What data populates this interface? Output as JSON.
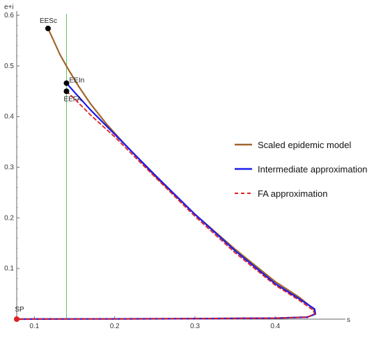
{
  "chart_data": {
    "type": "line",
    "xlabel": "s",
    "ylabel": "e+i",
    "xlim": [
      0.078,
      0.47
    ],
    "ylim": [
      0,
      0.6
    ],
    "x_ticks": [
      "0.1",
      "0.2",
      "0.3",
      "0.4"
    ],
    "y_ticks": [
      "0.1",
      "0.2",
      "0.3",
      "0.4",
      "0.5",
      "0.6"
    ],
    "vertical_line": {
      "x": 0.14,
      "color": "#5cc85c"
    },
    "series": [
      {
        "name": "Scaled epidemic model",
        "color": "#a0652a",
        "style": "solid",
        "points": [
          [
            0.117,
            0.574
          ],
          [
            0.124,
            0.55
          ],
          [
            0.132,
            0.522
          ],
          [
            0.142,
            0.494
          ],
          [
            0.155,
            0.46
          ],
          [
            0.17,
            0.425
          ],
          [
            0.19,
            0.385
          ],
          [
            0.21,
            0.35
          ],
          [
            0.25,
            0.283
          ],
          [
            0.3,
            0.207
          ],
          [
            0.35,
            0.138
          ],
          [
            0.4,
            0.074
          ],
          [
            0.43,
            0.043
          ],
          [
            0.448,
            0.02
          ],
          [
            0.449,
            0.01
          ],
          [
            0.44,
            0.004
          ],
          [
            0.4,
            0.002
          ],
          [
            0.3,
            0.001
          ],
          [
            0.2,
            0.0005
          ],
          [
            0.1,
            0.0002
          ],
          [
            0.078,
            0
          ]
        ]
      },
      {
        "name": "Intermediate approximation",
        "color": "#1a1aee",
        "style": "solid",
        "points": [
          [
            0.14,
            0.466
          ],
          [
            0.15,
            0.448
          ],
          [
            0.17,
            0.413
          ],
          [
            0.2,
            0.365
          ],
          [
            0.25,
            0.285
          ],
          [
            0.3,
            0.207
          ],
          [
            0.35,
            0.135
          ],
          [
            0.4,
            0.07
          ],
          [
            0.43,
            0.04
          ],
          [
            0.449,
            0.02
          ],
          [
            0.45,
            0.01
          ],
          [
            0.44,
            0.004
          ],
          [
            0.4,
            0.002
          ],
          [
            0.3,
            0.001
          ],
          [
            0.2,
            0.0005
          ],
          [
            0.1,
            0.0002
          ],
          [
            0.078,
            0
          ]
        ]
      },
      {
        "name": "FA approximation",
        "color": "#e02020",
        "style": "dashed",
        "points": [
          [
            0.14,
            0.45
          ],
          [
            0.15,
            0.435
          ],
          [
            0.17,
            0.403
          ],
          [
            0.2,
            0.36
          ],
          [
            0.25,
            0.281
          ],
          [
            0.3,
            0.203
          ],
          [
            0.35,
            0.131
          ],
          [
            0.4,
            0.067
          ],
          [
            0.43,
            0.037
          ],
          [
            0.447,
            0.018
          ],
          [
            0.449,
            0.01
          ],
          [
            0.44,
            0.004
          ],
          [
            0.4,
            0.002
          ],
          [
            0.3,
            0.001
          ],
          [
            0.2,
            0.0005
          ],
          [
            0.1,
            0.0002
          ],
          [
            0.078,
            0
          ]
        ]
      }
    ],
    "points": [
      {
        "label": "EESc",
        "x": 0.117,
        "y": 0.574,
        "color": "#000000"
      },
      {
        "label": "EEIn",
        "x": 0.14,
        "y": 0.466,
        "color": "#000000"
      },
      {
        "label": "EEFA",
        "x": 0.14,
        "y": 0.45,
        "color": "#000000"
      },
      {
        "label": "SP",
        "x": 0.078,
        "y": 0,
        "color": "#e02020"
      }
    ],
    "legend": "right"
  }
}
